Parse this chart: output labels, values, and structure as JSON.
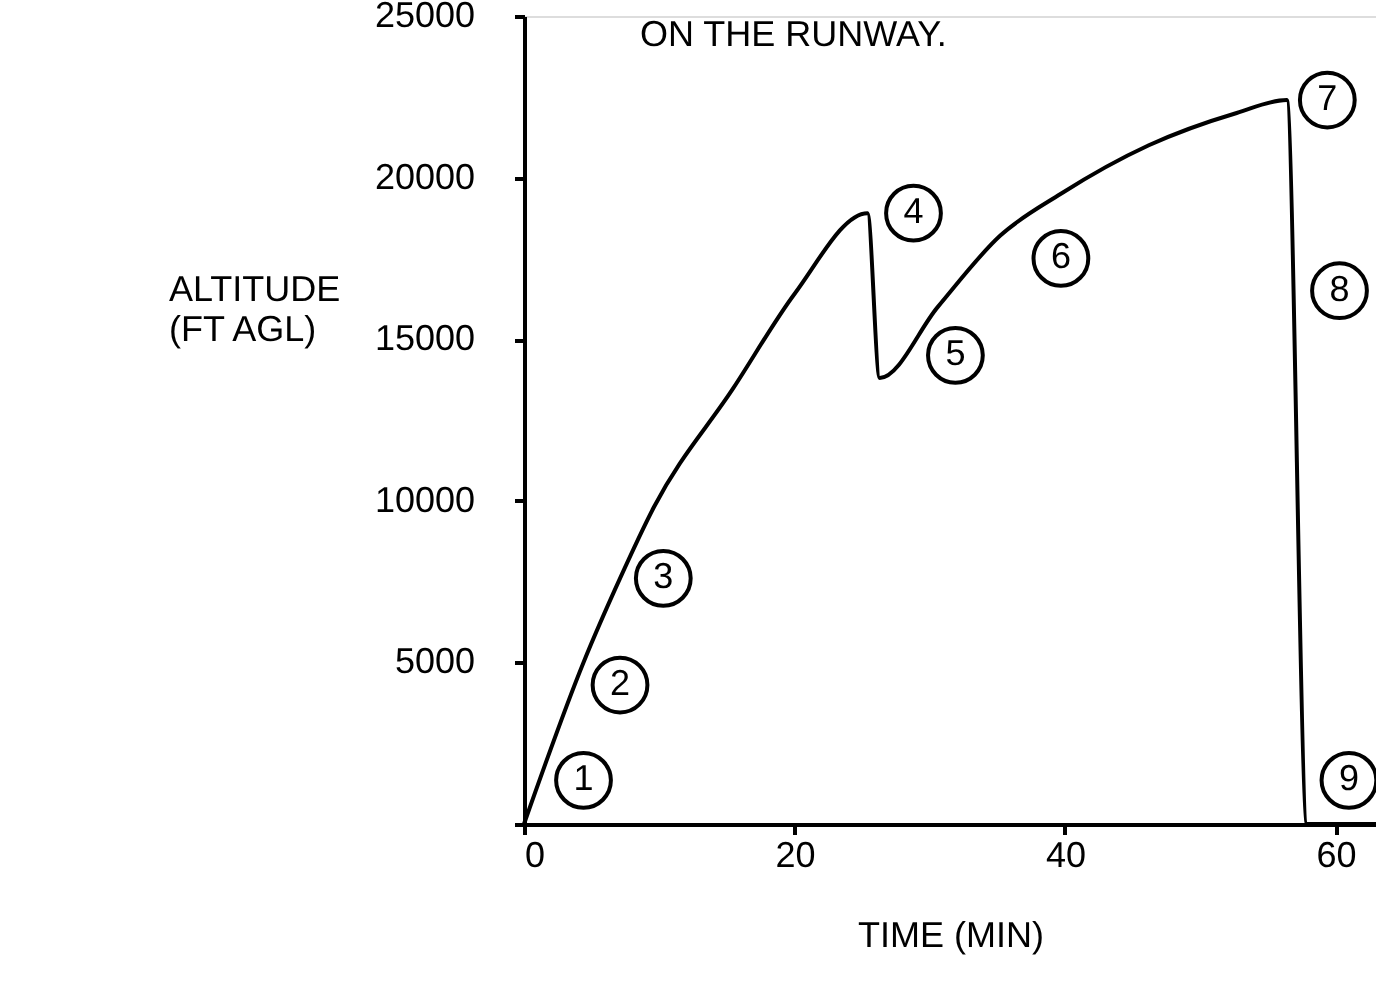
{
  "chart_data": {
    "type": "line",
    "title": "ON THE RUNWAY.",
    "xlabel": "TIME (MIN)",
    "ylabel": "ALTITUDE\n(FT AGL)",
    "x": [
      0,
      4.4,
      7.1,
      9.6,
      15.5,
      20,
      25.4,
      26.3,
      30.6,
      35.2,
      39.7,
      46.2,
      52.7,
      56.4,
      57.9,
      63
    ],
    "series": [
      {
        "color": "#000000",
        "values": [
          0,
          5000,
          7600,
          9800,
          13500,
          16400,
          18900,
          13800,
          16000,
          18200,
          19500,
          21000,
          22000,
          22400,
          0,
          0
        ]
      }
    ],
    "xlim": [
      0,
      63
    ],
    "ylim": [
      0,
      25000
    ],
    "xticks": [
      0,
      20,
      40,
      60
    ],
    "yticks": [
      {
        "value": 0,
        "label": null
      },
      5000,
      10000,
      15000,
      20000,
      25000
    ],
    "grid": false,
    "marker": "none",
    "line_style": "solid",
    "annotations": [
      {
        "text": "1",
        "x": 4.4,
        "y": 1350
      },
      {
        "text": "2",
        "x": 7.1,
        "y": 4300
      },
      {
        "text": "3",
        "x": 10.3,
        "y": 7600
      },
      {
        "text": "4",
        "x": 28.8,
        "y": 18900
      },
      {
        "text": "5",
        "x": 31.9,
        "y": 14500
      },
      {
        "text": "6",
        "x": 39.7,
        "y": 17500
      },
      {
        "text": "7",
        "x": 59.4,
        "y": 22400
      },
      {
        "text": "8",
        "x": 60.3,
        "y": 16500
      },
      {
        "text": "9",
        "x": 61,
        "y": 1350
      }
    ]
  }
}
